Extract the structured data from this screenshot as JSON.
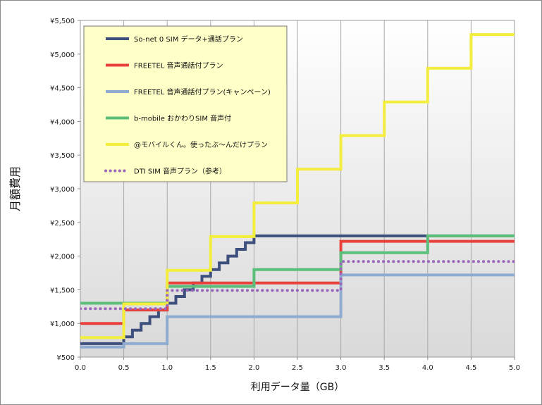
{
  "chart_data": {
    "type": "line",
    "title": "",
    "xlabel": "利用データ量（GB）",
    "ylabel": "月額費用",
    "xlim": [
      0,
      5
    ],
    "ylim": [
      500,
      5500
    ],
    "x_ticks": [
      "0.0",
      "0.5",
      "1.0",
      "1.5",
      "2.0",
      "2.5",
      "3.0",
      "3.5",
      "4.0",
      "4.5",
      "5.0"
    ],
    "y_ticks": [
      "¥500",
      "¥1,000",
      "¥1,500",
      "¥2,000",
      "¥2,500",
      "¥3,000",
      "¥3,500",
      "¥4,000",
      "¥4,500",
      "¥5,000",
      "¥5,500"
    ],
    "grid": "vertical",
    "legend_position": "top-left",
    "series": [
      {
        "name": "So-net 0 SIM データ+通話プラン",
        "color": "#3d4f7c",
        "style": "solid",
        "points": [
          [
            0,
            700
          ],
          [
            0.5,
            700
          ],
          [
            0.5,
            800
          ],
          [
            0.6,
            800
          ],
          [
            0.6,
            900
          ],
          [
            0.7,
            900
          ],
          [
            0.7,
            1000
          ],
          [
            0.8,
            1000
          ],
          [
            0.8,
            1100
          ],
          [
            0.9,
            1100
          ],
          [
            0.9,
            1200
          ],
          [
            1.0,
            1200
          ],
          [
            1.0,
            1300
          ],
          [
            1.1,
            1300
          ],
          [
            1.1,
            1400
          ],
          [
            1.2,
            1400
          ],
          [
            1.2,
            1500
          ],
          [
            1.3,
            1500
          ],
          [
            1.3,
            1600
          ],
          [
            1.4,
            1600
          ],
          [
            1.4,
            1700
          ],
          [
            1.5,
            1700
          ],
          [
            1.5,
            1800
          ],
          [
            1.6,
            1800
          ],
          [
            1.6,
            1900
          ],
          [
            1.7,
            1900
          ],
          [
            1.7,
            2000
          ],
          [
            1.8,
            2000
          ],
          [
            1.8,
            2100
          ],
          [
            1.9,
            2100
          ],
          [
            1.9,
            2200
          ],
          [
            2.0,
            2200
          ],
          [
            2.0,
            2300
          ],
          [
            5.0,
            2300
          ]
        ]
      },
      {
        "name": "FREETEL 音声通話付プラン",
        "color": "#e8413c",
        "style": "solid",
        "points": [
          [
            0,
            1000
          ],
          [
            0.5,
            1000
          ],
          [
            0.5,
            1200
          ],
          [
            1.0,
            1200
          ],
          [
            1.0,
            1600
          ],
          [
            3.0,
            1600
          ],
          [
            3.0,
            2220
          ],
          [
            5.0,
            2220
          ]
        ]
      },
      {
        "name": "FREETEL 音声通話付プラン(キャンペーン)",
        "color": "#8facd0",
        "style": "solid",
        "points": [
          [
            0,
            650
          ],
          [
            0.5,
            650
          ],
          [
            0.5,
            700
          ],
          [
            1.0,
            700
          ],
          [
            1.0,
            1100
          ],
          [
            3.0,
            1100
          ],
          [
            3.0,
            1720
          ],
          [
            5.0,
            1720
          ]
        ]
      },
      {
        "name": "b-mobile おかわりSIM 音声付",
        "color": "#5bbf7a",
        "style": "solid",
        "points": [
          [
            0,
            1300
          ],
          [
            1.0,
            1300
          ],
          [
            1.0,
            1550
          ],
          [
            2.0,
            1550
          ],
          [
            2.0,
            1800
          ],
          [
            3.0,
            1800
          ],
          [
            3.0,
            2050
          ],
          [
            4.0,
            2050
          ],
          [
            4.0,
            2300
          ],
          [
            5.0,
            2300
          ]
        ]
      },
      {
        "name": "@モバイルくん。使ったぶ～んだけプラン",
        "color": "#f3ee3d",
        "style": "solid",
        "points": [
          [
            0,
            790
          ],
          [
            0.5,
            790
          ],
          [
            0.5,
            1290
          ],
          [
            1.0,
            1290
          ],
          [
            1.0,
            1790
          ],
          [
            1.5,
            1790
          ],
          [
            1.5,
            2290
          ],
          [
            2.0,
            2290
          ],
          [
            2.0,
            2790
          ],
          [
            2.5,
            2790
          ],
          [
            2.5,
            3290
          ],
          [
            3.0,
            3290
          ],
          [
            3.0,
            3790
          ],
          [
            3.5,
            3790
          ],
          [
            3.5,
            4290
          ],
          [
            4.0,
            4290
          ],
          [
            4.0,
            4790
          ],
          [
            4.5,
            4790
          ],
          [
            4.5,
            5290
          ],
          [
            5.0,
            5290
          ]
        ]
      },
      {
        "name": "DTI SIM 音声プラン（参考）",
        "color": "#9966bb",
        "style": "dotted",
        "points": [
          [
            0,
            1220
          ],
          [
            1.0,
            1220
          ],
          [
            1.0,
            1490
          ],
          [
            3.0,
            1490
          ],
          [
            3.0,
            1920
          ],
          [
            5.0,
            1920
          ]
        ]
      }
    ]
  }
}
